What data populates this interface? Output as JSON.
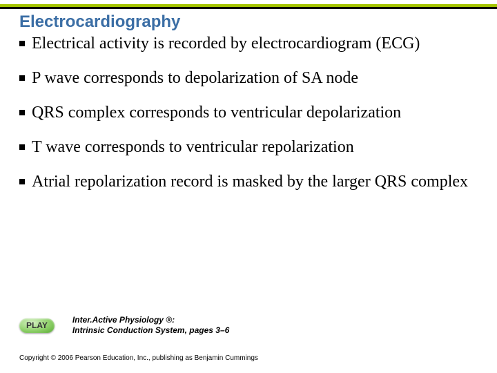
{
  "colors": {
    "title": "#3b6ea5",
    "rule_green": "#a4c400",
    "rule_black": "#000000",
    "body_text": "#000000",
    "background": "#ffffff",
    "play_text": "#333333"
  },
  "typography": {
    "title_fontsize_pt": 18,
    "bullet_fontsize_pt": 18,
    "caption_fontsize_pt": 9,
    "copyright_fontsize_pt": 7,
    "title_font": "Arial",
    "body_font": "Times New Roman"
  },
  "title": "Electrocardiography",
  "bullets": [
    "Electrical activity is recorded by electrocardiogram (ECG)",
    "P wave corresponds to depolarization of SA node",
    "QRS complex corresponds to ventricular depolarization",
    "T wave corresponds to ventricular repolarization",
    "Atrial repolarization record is masked by the larger QRS complex"
  ],
  "play": {
    "label": "PLAY",
    "caption_line1": "Inter.Active Physiology ®:",
    "caption_line2": "Intrinsic Conduction System, pages 3–6"
  },
  "copyright": "Copyright © 2006 Pearson Education, Inc., publishing as Benjamin Cummings"
}
